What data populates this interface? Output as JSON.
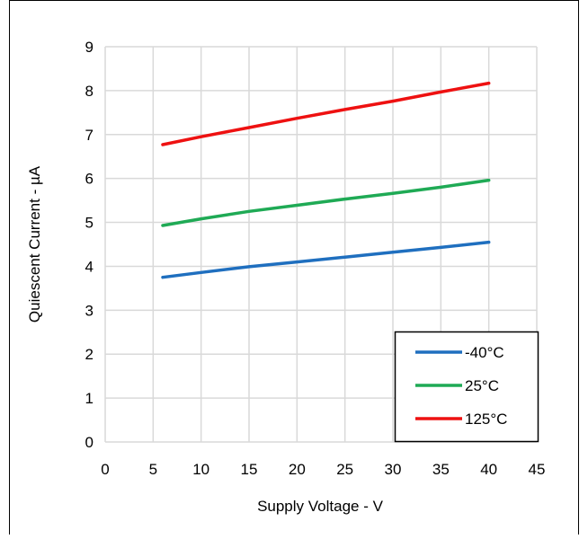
{
  "chart_data": {
    "type": "line",
    "title": "",
    "xlabel": "Supply Voltage - V",
    "ylabel": "Quiescent Current - µA",
    "xlim": [
      0,
      45
    ],
    "ylim": [
      0,
      9
    ],
    "xticks": [
      0,
      5,
      10,
      15,
      20,
      25,
      30,
      35,
      40,
      45
    ],
    "yticks": [
      0,
      1,
      2,
      3,
      4,
      5,
      6,
      7,
      8,
      9
    ],
    "grid": true,
    "legend_position": "bottom-right",
    "x": [
      6,
      10,
      15,
      20,
      25,
      30,
      35,
      40
    ],
    "series": [
      {
        "name": "-40°C",
        "color": "#1f6fbf",
        "values": [
          3.75,
          3.86,
          3.99,
          4.1,
          4.21,
          4.32,
          4.43,
          4.55
        ]
      },
      {
        "name": "25°C",
        "color": "#1faa55",
        "values": [
          4.93,
          5.08,
          5.25,
          5.39,
          5.53,
          5.66,
          5.8,
          5.96
        ]
      },
      {
        "name": "125°C",
        "color": "#ee1111",
        "values": [
          6.77,
          6.95,
          7.16,
          7.37,
          7.57,
          7.76,
          7.97,
          8.17
        ]
      }
    ]
  }
}
